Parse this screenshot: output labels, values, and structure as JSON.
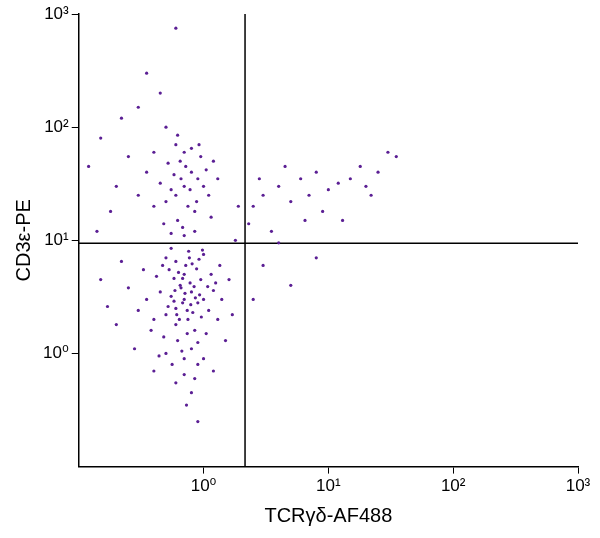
{
  "chart_data": {
    "type": "scatter",
    "x_label": "TCRγδ-AF488",
    "y_label": "CD3ε-PE",
    "log": true,
    "grid": false,
    "color": "#5b1f94",
    "xlim": [
      0.1,
      1000
    ],
    "ylim": [
      0.1,
      1000
    ],
    "xticks": [
      {
        "value": 1,
        "label": "10⁰"
      },
      {
        "value": 10,
        "label": "10¹"
      },
      {
        "value": 100,
        "label": "10²"
      },
      {
        "value": 1000,
        "label": "10³"
      }
    ],
    "yticks": [
      {
        "value": 1,
        "label": "10⁰"
      },
      {
        "value": 10,
        "label": "10¹"
      },
      {
        "value": 100,
        "label": "10²"
      },
      {
        "value": 1000,
        "label": "10³"
      }
    ],
    "gate": {
      "x": 2.15,
      "y": 9.4
    },
    "points": [
      [
        0.7,
        3
      ],
      [
        0.6,
        2.5
      ],
      [
        0.8,
        3.5
      ],
      [
        0.75,
        2
      ],
      [
        0.65,
        4
      ],
      [
        0.9,
        2.8
      ],
      [
        0.55,
        3.2
      ],
      [
        0.85,
        1.6
      ],
      [
        0.7,
        5
      ],
      [
        0.6,
        1.8
      ],
      [
        1.0,
        3
      ],
      [
        0.5,
        2.2
      ],
      [
        0.72,
        6
      ],
      [
        0.95,
        4.5
      ],
      [
        0.62,
        1.3
      ],
      [
        0.8,
        1.1
      ],
      [
        0.68,
        2.8
      ],
      [
        0.58,
        4.6
      ],
      [
        1.1,
        2.4
      ],
      [
        0.45,
        3.5
      ],
      [
        0.77,
        7
      ],
      [
        0.88,
        5.6
      ],
      [
        0.53,
        5.5
      ],
      [
        0.7,
        0.9
      ],
      [
        0.9,
        0.8
      ],
      [
        1.05,
        1.5
      ],
      [
        0.4,
        2.0
      ],
      [
        0.48,
        1.4
      ],
      [
        1.2,
        3.6
      ],
      [
        0.66,
        3.8
      ],
      [
        0.82,
        2.3
      ],
      [
        0.74,
        1.5
      ],
      [
        0.6,
        6.5
      ],
      [
        0.92,
        6.8
      ],
      [
        1.0,
        7.5
      ],
      [
        0.5,
        7
      ],
      [
        0.42,
        4.8
      ],
      [
        1.15,
        5
      ],
      [
        0.35,
        3
      ],
      [
        0.38,
        1.6
      ],
      [
        1.3,
        2
      ],
      [
        1.25,
        4.2
      ],
      [
        0.7,
        0.65
      ],
      [
        0.85,
        0.6
      ],
      [
        0.56,
        0.8
      ],
      [
        1.0,
        0.9
      ],
      [
        0.64,
        2.0
      ],
      [
        0.78,
        4.2
      ],
      [
        0.86,
        3.1
      ],
      [
        0.96,
        2.1
      ],
      [
        0.58,
        2.9
      ],
      [
        0.71,
        3.4
      ],
      [
        0.63,
        5.2
      ],
      [
        0.81,
        6.2
      ],
      [
        0.52,
        2.6
      ],
      [
        1.08,
        3.9
      ],
      [
        0.47,
        6
      ],
      [
        0.3,
        2.4
      ],
      [
        0.25,
        3.8
      ],
      [
        0.2,
        1.8
      ],
      [
        0.33,
        5.5
      ],
      [
        0.28,
        1.1
      ],
      [
        1.4,
        3
      ],
      [
        1.5,
        1.3
      ],
      [
        1.35,
        6
      ],
      [
        0.9,
        1.25
      ],
      [
        0.67,
        1.05
      ],
      [
        0.76,
        8
      ],
      [
        0.55,
        8.5
      ],
      [
        0.98,
        8.2
      ],
      [
        0.44,
        0.95
      ],
      [
        0.6,
        0.55
      ],
      [
        0.8,
        0.45
      ],
      [
        0.73,
        0.35
      ],
      [
        0.9,
        0.25
      ],
      [
        0.17,
        2.6
      ],
      [
        0.15,
        4.5
      ],
      [
        0.22,
        6.5
      ],
      [
        1.6,
        4.5
      ],
      [
        1.7,
        2.2
      ],
      [
        0.5,
        1.0
      ],
      [
        0.4,
        0.7
      ],
      [
        1.2,
        0.7
      ],
      [
        0.68,
        4.6
      ],
      [
        0.84,
        3.9
      ],
      [
        0.59,
        3.6
      ],
      [
        0.79,
        2.7
      ],
      [
        0.93,
        3.3
      ],
      [
        0.61,
        2.2
      ],
      [
        0.74,
        2.4
      ],
      [
        0.7,
        30
      ],
      [
        0.6,
        25
      ],
      [
        0.8,
        40
      ],
      [
        0.75,
        20
      ],
      [
        0.65,
        50
      ],
      [
        0.9,
        35
      ],
      [
        0.55,
        28
      ],
      [
        0.85,
        18
      ],
      [
        0.7,
        60
      ],
      [
        0.5,
        22
      ],
      [
        1.0,
        30
      ],
      [
        0.62,
        15
      ],
      [
        0.95,
        55
      ],
      [
        0.72,
        45
      ],
      [
        0.58,
        38
      ],
      [
        1.1,
        25
      ],
      [
        0.45,
        32
      ],
      [
        0.8,
        65
      ],
      [
        0.68,
        13
      ],
      [
        0.88,
        22
      ],
      [
        0.52,
        48
      ],
      [
        1.05,
        42
      ],
      [
        0.4,
        20
      ],
      [
        0.78,
        28
      ],
      [
        0.66,
        35
      ],
      [
        0.6,
        70
      ],
      [
        0.92,
        70
      ],
      [
        0.35,
        40
      ],
      [
        0.3,
        25
      ],
      [
        1.2,
        50
      ],
      [
        1.15,
        16
      ],
      [
        0.48,
        14
      ],
      [
        0.25,
        55
      ],
      [
        0.2,
        30
      ],
      [
        0.15,
        80
      ],
      [
        0.22,
        120
      ],
      [
        0.3,
        150
      ],
      [
        0.5,
        100
      ],
      [
        0.12,
        45
      ],
      [
        0.18,
        18
      ],
      [
        1.3,
        35
      ],
      [
        0.7,
        11
      ],
      [
        0.85,
        12
      ],
      [
        0.55,
        11.5
      ],
      [
        0.4,
        60
      ],
      [
        0.62,
        85
      ],
      [
        0.45,
        200
      ],
      [
        0.6,
        750
      ],
      [
        0.35,
        300
      ],
      [
        0.14,
        12
      ],
      [
        2.5,
        20
      ],
      [
        3,
        25
      ],
      [
        2.3,
        14
      ],
      [
        4,
        30
      ],
      [
        5,
        22
      ],
      [
        3.5,
        12
      ],
      [
        6,
        35
      ],
      [
        7,
        25
      ],
      [
        8,
        40
      ],
      [
        10,
        28
      ],
      [
        12,
        32
      ],
      [
        15,
        35
      ],
      [
        20,
        30
      ],
      [
        25,
        40
      ],
      [
        30,
        60
      ],
      [
        35,
        55
      ],
      [
        18,
        45
      ],
      [
        9,
        18
      ],
      [
        4.5,
        45
      ],
      [
        2.8,
        35
      ],
      [
        13,
        15
      ],
      [
        22,
        25
      ],
      [
        6.5,
        15
      ],
      [
        3,
        6
      ],
      [
        5,
        4
      ],
      [
        8,
        7
      ],
      [
        2.5,
        3
      ],
      [
        1.9,
        20
      ],
      [
        1.8,
        10
      ],
      [
        4,
        9.5
      ]
    ]
  }
}
